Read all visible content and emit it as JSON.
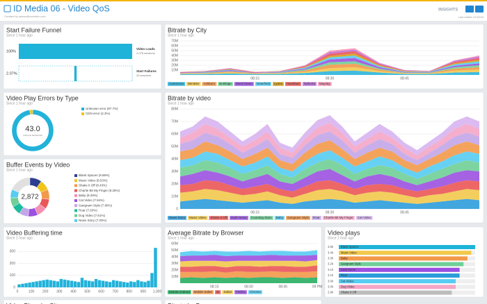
{
  "header": {
    "title": "ID Media 06 - Video QoS",
    "created": "Created by awson@newrelic.com",
    "brand": "INSIGHTS",
    "edited": "Last edited 12/10/18"
  },
  "chart_data": [
    {
      "type": "funnel",
      "title": "Start Failure Funnel",
      "subtitle": "Since 1 hour ago",
      "categories": [
        "Video Loads",
        "Start Failures"
      ],
      "descriptions": [
        "2,078 sessions",
        "43 sessions"
      ],
      "values": [
        100,
        2.07
      ],
      "value_labels": [
        "100%",
        "2.07%"
      ],
      "color": "#1fb3d9"
    },
    {
      "type": "donut",
      "title": "Video Play Errors by Type",
      "subtitle": "Since 1 hour ago",
      "center": {
        "value": 43,
        "label": "43.0"
      },
      "center_caption": "UNIQUE SESSIONS",
      "categories": [
        "Unknown error (97.7%)",
        "CDN error (2.3%)"
      ],
      "values": [
        97.7,
        2.3
      ],
      "colors": [
        "#22b2da",
        "#f0c419"
      ]
    },
    {
      "type": "donut",
      "title": "Buffer Events by Video",
      "subtitle": "Since 1 hour ago",
      "center": {
        "value": 2872,
        "label": "2,872"
      },
      "categories": [
        "Blank Spaces (9.88%)",
        "Music Video (8.53%)",
        "Shake It Off (8.43%)",
        "Charlie Bit My Finger (8.25%)",
        "Baby (8.29%)",
        "Cat Video (7.94%)",
        "Gangnam Style (7.80%)",
        "Roar (7.63%)",
        "Dog Video (7.61%)",
        "News Story (7.03%)"
      ],
      "values": [
        9.88,
        8.53,
        8.43,
        8.25,
        8.29,
        7.94,
        7.8,
        7.63,
        7.61,
        7.03
      ],
      "colors": [
        "#2c3e8f",
        "#f0c419",
        "#f2994a",
        "#eb5757",
        "#f48fb1",
        "#9b51e0",
        "#c3a6e8",
        "#1abc9c",
        "#6fcf97",
        "#56ccf2"
      ]
    },
    {
      "type": "histogram",
      "title": "Video Buffering time",
      "subtitle": "Since 1 hour ago",
      "color": "#22b2da",
      "bins": [
        0,
        25,
        50,
        75,
        100,
        125,
        150,
        175,
        200,
        225,
        250,
        275,
        300,
        325,
        350,
        375,
        400,
        425,
        450,
        475,
        500,
        525,
        550,
        575,
        600,
        625,
        650,
        675,
        700,
        725,
        750,
        775,
        800,
        825,
        850,
        875,
        900,
        925,
        950,
        975,
        1000
      ],
      "values": [
        25,
        30,
        35,
        40,
        45,
        50,
        55,
        60,
        65,
        60,
        55,
        50,
        70,
        65,
        60,
        55,
        50,
        45,
        80,
        60,
        55,
        50,
        70,
        60,
        55,
        50,
        45,
        60,
        55,
        50,
        45,
        40,
        50,
        45,
        60,
        50,
        45,
        55,
        120,
        330
      ],
      "xlim": [
        0,
        1000
      ],
      "xticks": [
        0,
        100,
        200,
        300,
        400,
        500,
        600,
        700,
        800,
        900,
        {
          "value": 1000,
          "label": "1,000"
        }
      ],
      "ylim": [
        0,
        360
      ],
      "yticks": [
        0,
        100,
        200,
        300
      ]
    },
    {
      "type": "area",
      "title": "Bitrate by City",
      "subtitle": "Since 1 hour ago",
      "categories": [
        null,
        null,
        null,
        "08:15",
        null,
        null,
        "08:30",
        null,
        null,
        "08:45",
        null,
        null,
        null
      ],
      "ylim": [
        0,
        70
      ],
      "yticks": [
        {
          "value": 10,
          "label": "10M"
        },
        {
          "value": 20,
          "label": "20M"
        },
        {
          "value": 30,
          "label": "30M"
        },
        {
          "value": 40,
          "label": "40M"
        },
        {
          "value": 50,
          "label": "50M"
        },
        {
          "value": 60,
          "label": "60M"
        },
        {
          "value": 70,
          "label": "70M"
        }
      ],
      "series": [
        {
          "name": "Cameroon",
          "color": "#2bb5dc",
          "values": [
            2,
            2,
            3,
            2,
            2,
            4,
            8,
            9,
            5,
            2,
            2,
            5,
            6
          ]
        },
        {
          "name": "Wimbler",
          "color": "#f2c94c",
          "values": [
            1,
            1,
            2,
            1,
            1,
            2,
            6,
            7,
            3,
            1,
            1,
            4,
            5
          ]
        },
        {
          "name": "Ashburn",
          "color": "#f2994a",
          "values": [
            1,
            1,
            2,
            1,
            1,
            3,
            7,
            7,
            3,
            1,
            1,
            4,
            5
          ]
        },
        {
          "name": "Bullridge",
          "color": "#6fcf97",
          "values": [
            0,
            1,
            1,
            0,
            1,
            2,
            5,
            5,
            2,
            1,
            1,
            3,
            4
          ]
        },
        {
          "name": "West Green",
          "color": "#9b51e0",
          "values": [
            1,
            1,
            2,
            1,
            1,
            2,
            6,
            7,
            3,
            1,
            1,
            3,
            4
          ]
        },
        {
          "name": "Osterfield",
          "color": "#56ccf2",
          "values": [
            0,
            1,
            1,
            0,
            1,
            2,
            4,
            5,
            2,
            1,
            1,
            3,
            4
          ]
        },
        {
          "name": "Lyons",
          "color": "#d4a017",
          "values": [
            0,
            0,
            1,
            0,
            0,
            1,
            3,
            4,
            2,
            1,
            0,
            2,
            3
          ]
        },
        {
          "name": "Hazelban",
          "color": "#eb5757",
          "values": [
            1,
            1,
            1,
            1,
            1,
            2,
            5,
            5,
            2,
            1,
            1,
            3,
            4
          ]
        },
        {
          "name": "Nahurta",
          "color": "#bb6bd9",
          "values": [
            0,
            0,
            1,
            0,
            0,
            1,
            3,
            3,
            2,
            1,
            0,
            2,
            3
          ]
        },
        {
          "name": "Mayday",
          "color": "#f78fb3",
          "values": [
            0,
            0,
            0,
            0,
            0,
            1,
            3,
            3,
            1,
            0,
            0,
            1,
            2
          ]
        }
      ]
    },
    {
      "type": "area",
      "title": "Bitrate by video",
      "subtitle": "Since 1 hour ago",
      "categories": [
        null,
        null,
        null,
        null,
        null,
        null,
        "08:15",
        null,
        null,
        null,
        null,
        null,
        "08:30",
        null,
        null,
        null,
        null,
        null,
        "08:45",
        null,
        null,
        null,
        null,
        null,
        null
      ],
      "ylim": [
        0,
        80
      ],
      "yticks": [
        0,
        {
          "value": 10,
          "label": "10M"
        },
        {
          "value": 20,
          "label": "20M"
        },
        {
          "value": 30,
          "label": "30M"
        },
        {
          "value": 40,
          "label": "40M"
        },
        {
          "value": 50,
          "label": "50M"
        },
        {
          "value": 60,
          "label": "60M"
        },
        {
          "value": 70,
          "label": "70M"
        },
        {
          "value": 80,
          "label": "80M"
        }
      ],
      "series": [
        {
          "name": "News Story",
          "color": "#2d9cdb",
          "values": [
            6,
            7,
            8,
            7,
            6,
            5,
            6,
            7,
            5,
            4,
            6,
            7,
            8,
            7,
            5,
            6,
            7,
            6,
            5,
            4,
            5,
            6,
            7,
            8,
            7
          ]
        },
        {
          "name": "Music Video",
          "color": "#f2c94c",
          "values": [
            7,
            7,
            8,
            8,
            7,
            6,
            6,
            7,
            6,
            5,
            6,
            8,
            8,
            7,
            6,
            7,
            7,
            7,
            6,
            5,
            6,
            6,
            7,
            8,
            8
          ]
        },
        {
          "name": "Shake It Off",
          "color": "#eb5757",
          "values": [
            6,
            6,
            7,
            7,
            6,
            5,
            6,
            6,
            5,
            5,
            6,
            7,
            7,
            6,
            5,
            6,
            6,
            6,
            5,
            5,
            5,
            6,
            7,
            7,
            7
          ]
        },
        {
          "name": "Dark Horse",
          "color": "#9b51e0",
          "values": [
            7,
            8,
            8,
            7,
            7,
            6,
            7,
            8,
            6,
            6,
            7,
            8,
            9,
            7,
            6,
            7,
            8,
            7,
            6,
            5,
            6,
            7,
            8,
            8,
            8
          ]
        },
        {
          "name": "Counting Stars",
          "color": "#6fcf97",
          "values": [
            7,
            7,
            8,
            8,
            7,
            6,
            6,
            7,
            6,
            5,
            7,
            7,
            8,
            8,
            6,
            6,
            7,
            7,
            6,
            5,
            6,
            7,
            7,
            8,
            7
          ]
        },
        {
          "name": "Baby",
          "color": "#56ccf2",
          "values": [
            6,
            6,
            7,
            7,
            6,
            6,
            6,
            7,
            5,
            5,
            6,
            7,
            7,
            6,
            6,
            6,
            7,
            6,
            5,
            5,
            6,
            6,
            7,
            7,
            7
          ]
        },
        {
          "name": "Gangnam Style",
          "color": "#f2994a",
          "values": [
            7,
            7,
            8,
            7,
            7,
            6,
            7,
            7,
            6,
            6,
            7,
            8,
            8,
            7,
            6,
            7,
            7,
            7,
            6,
            6,
            6,
            7,
            8,
            8,
            7
          ]
        },
        {
          "name": "Roar",
          "color": "#c3a6e8",
          "values": [
            6,
            7,
            7,
            7,
            6,
            5,
            6,
            7,
            5,
            5,
            6,
            7,
            7,
            7,
            5,
            6,
            7,
            6,
            5,
            4,
            5,
            6,
            7,
            7,
            7
          ]
        },
        {
          "name": "Charlie Bit My Finger",
          "color": "#f4a6c6",
          "values": [
            5,
            6,
            7,
            6,
            5,
            5,
            5,
            6,
            5,
            4,
            5,
            6,
            7,
            6,
            5,
            5,
            6,
            5,
            5,
            4,
            5,
            5,
            6,
            7,
            6
          ]
        },
        {
          "name": "Cat Video",
          "color": "#d7b4f0",
          "values": [
            5,
            5,
            6,
            6,
            5,
            4,
            5,
            6,
            4,
            4,
            5,
            6,
            6,
            5,
            4,
            5,
            6,
            5,
            4,
            4,
            4,
            5,
            6,
            6,
            6
          ]
        }
      ]
    },
    {
      "type": "area",
      "title": "Average Bitrate by Browser",
      "subtitle": "Since 1 hour ago",
      "categories": [
        null,
        null,
        null,
        "08:15",
        null,
        null,
        "08:30",
        null,
        null,
        "08:45",
        null,
        null,
        "09 PM"
      ],
      "ylim": [
        0,
        60
      ],
      "yticks": [
        {
          "value": 10,
          "label": "10M"
        },
        {
          "value": 20,
          "label": "20M"
        },
        {
          "value": 30,
          "label": "30M"
        },
        {
          "value": 40,
          "label": "40M"
        },
        {
          "value": 50,
          "label": "50M"
        },
        {
          "value": 60,
          "label": "60M"
        }
      ],
      "series": [
        {
          "name": "Mobile Android",
          "color": "#27ae60",
          "values": [
            8,
            9,
            8,
            9,
            8,
            9,
            8,
            9,
            9,
            8,
            9,
            8,
            9
          ]
        },
        {
          "name": "Mobile Safari",
          "color": "#f2994a",
          "values": [
            9,
            8,
            9,
            9,
            8,
            9,
            9,
            8,
            9,
            9,
            8,
            9,
            9
          ]
        },
        {
          "name": "IE",
          "color": "#eb5757",
          "values": [
            8,
            8,
            9,
            8,
            8,
            8,
            9,
            8,
            8,
            9,
            8,
            8,
            9
          ]
        },
        {
          "name": "Safari",
          "color": "#f2c94c",
          "values": [
            8,
            9,
            8,
            8,
            9,
            8,
            8,
            9,
            8,
            8,
            9,
            8,
            8
          ]
        },
        {
          "name": "Firefox",
          "color": "#9b51e0",
          "values": [
            8,
            8,
            8,
            9,
            8,
            8,
            8,
            8,
            9,
            8,
            8,
            9,
            8
          ]
        },
        {
          "name": "Chrome",
          "color": "#56ccf2",
          "values": [
            6,
            7,
            6,
            6,
            7,
            6,
            7,
            6,
            6,
            7,
            6,
            6,
            7
          ]
        }
      ]
    },
    {
      "type": "hbar",
      "title": "Video plays",
      "subtitle": "Since 1 hour ago",
      "categories": [
        "Blank Spaces",
        "Music Video",
        "Baby",
        "Gangnam Style",
        "Dark Horse",
        "Roar",
        "Cat Video",
        "Dog Video",
        "Shake It Off"
      ],
      "values": [
        3500,
        3400,
        3300,
        3200,
        3100,
        3100,
        3000,
        3000,
        2900
      ],
      "value_labels": [
        "3.5k",
        "3.4k",
        "3.3k",
        "3.2k",
        "3.1k",
        "3.1k",
        "3.0k",
        "3.0k",
        "2.9k"
      ],
      "colors": [
        "#1fb3d9",
        "#f2c94c",
        "#f2994a",
        "#6fcf97",
        "#9b51e0",
        "#2d9cdb",
        "#56ccf2",
        "#f4a6c6",
        "#bdbdbd"
      ]
    },
    {
      "type": "map",
      "title": "Video Plays by City"
    },
    {
      "type": "area",
      "title": "Bitrate by Browser"
    }
  ]
}
